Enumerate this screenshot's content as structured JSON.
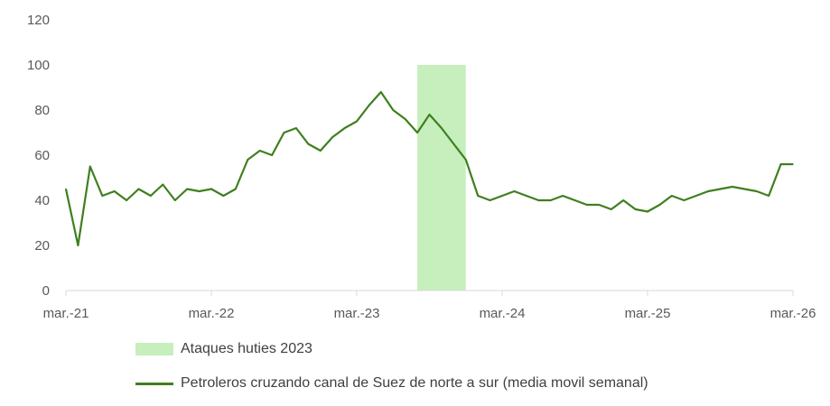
{
  "chart_data": {
    "type": "line",
    "title": "",
    "xlabel": "",
    "ylabel": "",
    "ylim": [
      0,
      120
    ],
    "yticks": [
      0,
      20,
      40,
      60,
      80,
      100,
      120
    ],
    "xticks": [
      "mar.-21",
      "mar.-22",
      "mar.-23",
      "mar.-24",
      "mar.-25",
      "mar.-26"
    ],
    "grid": false,
    "legend_position": "bottom",
    "series": [
      {
        "name": "Petroleros cruzando canal de Suez de norte a sur (media movil semanal)",
        "color": "#3f7f1f",
        "x": [
          "mar.-21",
          "abr.-21",
          "may.-21",
          "jun.-21",
          "jul.-21",
          "ago.-21",
          "sep.-21",
          "oct.-21",
          "nov.-21",
          "dic.-21",
          "ene.-22",
          "feb.-22",
          "mar.-22",
          "abr.-22",
          "may.-22",
          "jun.-22",
          "jul.-22",
          "ago.-22",
          "sep.-22",
          "oct.-22",
          "nov.-22",
          "dic.-22",
          "ene.-23",
          "feb.-23",
          "mar.-23",
          "abr.-23",
          "may.-23",
          "jun.-23",
          "jul.-23",
          "ago.-23",
          "sep.-23",
          "oct.-23",
          "nov.-23",
          "dic.-23",
          "ene.-24",
          "feb.-24",
          "mar.-24",
          "abr.-24",
          "may.-24",
          "jun.-24",
          "jul.-24",
          "ago.-24",
          "sep.-24",
          "oct.-24",
          "nov.-24",
          "dic.-24",
          "ene.-25",
          "feb.-25",
          "mar.-25",
          "abr.-25",
          "may.-25",
          "jun.-25",
          "jul.-25",
          "ago.-25",
          "sep.-25",
          "oct.-25",
          "nov.-25",
          "dic.-25",
          "ene.-26",
          "feb.-26",
          "mar.-26"
        ],
        "values": [
          45,
          20,
          55,
          42,
          44,
          40,
          45,
          42,
          47,
          40,
          45,
          44,
          45,
          42,
          45,
          58,
          62,
          60,
          70,
          72,
          65,
          62,
          68,
          72,
          75,
          82,
          88,
          80,
          76,
          70,
          78,
          72,
          65,
          58,
          42,
          40,
          42,
          44,
          42,
          40,
          40,
          42,
          40,
          38,
          38,
          36,
          40,
          36,
          35,
          38,
          42,
          40,
          42,
          44,
          45,
          46,
          45,
          44,
          42,
          56,
          56
        ]
      }
    ],
    "shaded_region": {
      "label": "Ataques huties 2023",
      "color": "#c6efbd",
      "x_start": "ago.-23",
      "x_end": "dic.-23"
    }
  }
}
